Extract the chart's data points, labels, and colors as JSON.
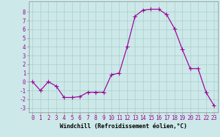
{
  "x": [
    0,
    1,
    2,
    3,
    4,
    5,
    6,
    7,
    8,
    9,
    10,
    11,
    12,
    13,
    14,
    15,
    16,
    17,
    18,
    19,
    20,
    21,
    22,
    23
  ],
  "y": [
    0,
    -1,
    0,
    -0.5,
    -1.8,
    -1.8,
    -1.7,
    -1.2,
    -1.2,
    -1.2,
    0.8,
    1.0,
    4.0,
    7.5,
    8.2,
    8.3,
    8.3,
    7.7,
    6.1,
    3.7,
    1.5,
    1.5,
    -1.2,
    -2.7
  ],
  "line_color": "#990099",
  "marker": "+",
  "marker_size": 4,
  "bg_color": "#cce8e8",
  "grid_color": "#aacccc",
  "xlabel": "Windchill (Refroidissement éolien,°C)",
  "xlabel_fontsize": 6,
  "ylabel_ticks": [
    -3,
    -2,
    -1,
    0,
    1,
    2,
    3,
    4,
    5,
    6,
    7,
    8
  ],
  "xtick_labels": [
    "0",
    "1",
    "2",
    "3",
    "4",
    "5",
    "6",
    "7",
    "8",
    "9",
    "10",
    "11",
    "12",
    "13",
    "14",
    "15",
    "16",
    "17",
    "18",
    "19",
    "20",
    "21",
    "22",
    "23"
  ],
  "ylim": [
    -3.5,
    9.2
  ],
  "xlim": [
    -0.5,
    23.5
  ],
  "tick_fontsize": 5.5,
  "linewidth": 0.9
}
